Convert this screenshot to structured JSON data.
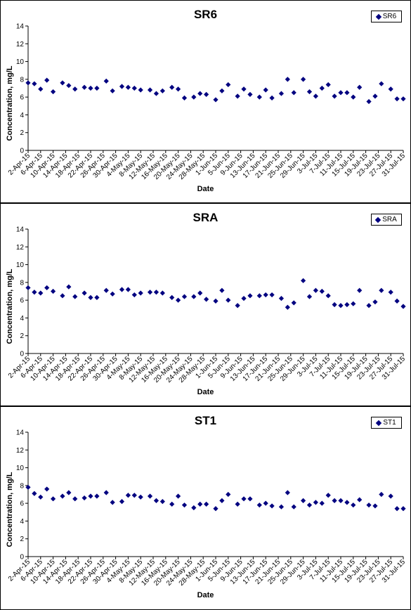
{
  "colors": {
    "marker": "#000080",
    "axis": "#000000",
    "background": "#ffffff"
  },
  "chart_data": [
    {
      "type": "scatter",
      "title": "SR6",
      "xlabel": "Date",
      "ylabel": "Concentration, mg/L",
      "ylim": [
        0,
        14
      ],
      "yticks": [
        0,
        2,
        4,
        6,
        8,
        10,
        12,
        14
      ],
      "xlim": [
        "2015-04-02",
        "2015-07-31"
      ],
      "xtick_labels": [
        "2-Apr-15",
        "6-Apr-15",
        "10-Apr-15",
        "14-Apr-15",
        "18-Apr-15",
        "22-Apr-15",
        "26-Apr-15",
        "30-Apr-15",
        "4-May-15",
        "8-May-15",
        "12-May-15",
        "16-May-15",
        "20-May-15",
        "24-May-15",
        "28-May-15",
        "1-Jun-15",
        "5-Jun-15",
        "9-Jun-15",
        "13-Jun-15",
        "17-Jun-15",
        "21-Jun-15",
        "25-Jun-15",
        "29-Jun-15",
        "3-Jul-15",
        "7-Jul-15",
        "11-Jul-15",
        "15-Jul-15",
        "19-Jul-15",
        "23-Jul-15",
        "27-Jul-15",
        "31-Jul-15"
      ],
      "grid": false,
      "legend": "top-right",
      "series": [
        {
          "name": "SR6",
          "x": [
            "2015-04-02",
            "2015-04-04",
            "2015-04-06",
            "2015-04-08",
            "2015-04-10",
            "2015-04-13",
            "2015-04-15",
            "2015-04-17",
            "2015-04-20",
            "2015-04-22",
            "2015-04-24",
            "2015-04-27",
            "2015-04-29",
            "2015-05-02",
            "2015-05-04",
            "2015-05-06",
            "2015-05-08",
            "2015-05-11",
            "2015-05-13",
            "2015-05-15",
            "2015-05-18",
            "2015-05-20",
            "2015-05-22",
            "2015-05-25",
            "2015-05-27",
            "2015-05-29",
            "2015-06-01",
            "2015-06-03",
            "2015-06-05",
            "2015-06-08",
            "2015-06-10",
            "2015-06-12",
            "2015-06-15",
            "2015-06-17",
            "2015-06-19",
            "2015-06-22",
            "2015-06-24",
            "2015-06-26",
            "2015-06-29",
            "2015-07-01",
            "2015-07-03",
            "2015-07-05",
            "2015-07-07",
            "2015-07-09",
            "2015-07-11",
            "2015-07-13",
            "2015-07-15",
            "2015-07-17",
            "2015-07-20",
            "2015-07-22",
            "2015-07-24",
            "2015-07-27",
            "2015-07-29",
            "2015-07-31"
          ],
          "y": [
            7.6,
            7.5,
            6.9,
            7.9,
            6.6,
            7.6,
            7.3,
            6.9,
            7.1,
            7.0,
            7.0,
            7.8,
            6.7,
            7.2,
            7.1,
            7.0,
            6.8,
            6.8,
            6.4,
            6.7,
            7.1,
            6.9,
            5.9,
            6.0,
            6.4,
            6.3,
            5.7,
            6.7,
            7.4,
            6.1,
            6.9,
            6.3,
            6.0,
            6.8,
            5.9,
            6.4,
            8.0,
            6.5,
            8.0,
            6.6,
            6.1,
            7.0,
            7.4,
            6.1,
            6.5,
            6.5,
            6.0,
            7.1,
            5.5,
            6.1,
            7.5,
            6.9,
            5.8,
            5.8
          ]
        }
      ]
    },
    {
      "type": "scatter",
      "title": "SRA",
      "xlabel": "Date",
      "ylabel": "Concentration, mg/L",
      "ylim": [
        0,
        14
      ],
      "yticks": [
        0,
        2,
        4,
        6,
        8,
        10,
        12,
        14
      ],
      "xlim": [
        "2015-04-02",
        "2015-07-31"
      ],
      "xtick_labels": [
        "2-Apr-15",
        "6-Apr-15",
        "10-Apr-15",
        "14-Apr-15",
        "18-Apr-15",
        "22-Apr-15",
        "26-Apr-15",
        "30-Apr-15",
        "4-May-15",
        "8-May-15",
        "12-May-15",
        "16-May-15",
        "20-May-15",
        "24-May-15",
        "28-May-15",
        "1-Jun-15",
        "5-Jun-15",
        "9-Jun-15",
        "13-Jun-15",
        "17-Jun-15",
        "21-Jun-15",
        "25-Jun-15",
        "29-Jun-15",
        "3-Jul-15",
        "7-Jul-15",
        "11-Jul-15",
        "15-Jul-15",
        "19-Jul-15",
        "23-Jul-15",
        "27-Jul-15",
        "31-Jul-15"
      ],
      "grid": false,
      "legend": "top-right",
      "series": [
        {
          "name": "SRA",
          "x": [
            "2015-04-02",
            "2015-04-04",
            "2015-04-06",
            "2015-04-08",
            "2015-04-10",
            "2015-04-13",
            "2015-04-15",
            "2015-04-17",
            "2015-04-20",
            "2015-04-22",
            "2015-04-24",
            "2015-04-27",
            "2015-04-29",
            "2015-05-02",
            "2015-05-04",
            "2015-05-06",
            "2015-05-08",
            "2015-05-11",
            "2015-05-13",
            "2015-05-15",
            "2015-05-18",
            "2015-05-20",
            "2015-05-22",
            "2015-05-25",
            "2015-05-27",
            "2015-05-29",
            "2015-06-01",
            "2015-06-03",
            "2015-06-05",
            "2015-06-08",
            "2015-06-10",
            "2015-06-12",
            "2015-06-15",
            "2015-06-17",
            "2015-06-19",
            "2015-06-22",
            "2015-06-24",
            "2015-06-26",
            "2015-06-29",
            "2015-07-01",
            "2015-07-03",
            "2015-07-05",
            "2015-07-07",
            "2015-07-09",
            "2015-07-11",
            "2015-07-13",
            "2015-07-15",
            "2015-07-17",
            "2015-07-20",
            "2015-07-22",
            "2015-07-24",
            "2015-07-27",
            "2015-07-29",
            "2015-07-31"
          ],
          "y": [
            7.4,
            6.9,
            6.8,
            7.4,
            7.0,
            6.5,
            7.5,
            6.4,
            6.8,
            6.3,
            6.3,
            7.1,
            6.7,
            7.2,
            7.2,
            6.6,
            6.8,
            6.9,
            6.9,
            6.8,
            6.3,
            6.0,
            6.4,
            6.4,
            6.8,
            6.1,
            5.9,
            7.1,
            6.0,
            5.4,
            6.2,
            6.5,
            6.5,
            6.6,
            6.6,
            6.2,
            5.2,
            5.7,
            8.2,
            6.4,
            7.1,
            7.0,
            6.5,
            5.5,
            5.4,
            5.5,
            5.6,
            7.1,
            5.4,
            5.8,
            7.1,
            6.9,
            5.9,
            5.3
          ]
        }
      ]
    },
    {
      "type": "scatter",
      "title": "ST1",
      "xlabel": "Date",
      "ylabel": "Concentration, mg/L",
      "ylim": [
        0,
        14
      ],
      "yticks": [
        0,
        2,
        4,
        6,
        8,
        10,
        12,
        14
      ],
      "xlim": [
        "2015-04-02",
        "2015-07-31"
      ],
      "xtick_labels": [
        "2-Apr-15",
        "6-Apr-15",
        "10-Apr-15",
        "14-Apr-15",
        "18-Apr-15",
        "22-Apr-15",
        "26-Apr-15",
        "30-Apr-15",
        "4-May-15",
        "8-May-15",
        "12-May-15",
        "16-May-15",
        "20-May-15",
        "24-May-15",
        "28-May-15",
        "1-Jun-15",
        "5-Jun-15",
        "9-Jun-15",
        "13-Jun-15",
        "17-Jun-15",
        "21-Jun-15",
        "25-Jun-15",
        "29-Jun-15",
        "3-Jul-15",
        "7-Jul-15",
        "11-Jul-15",
        "15-Jul-15",
        "19-Jul-15",
        "23-Jul-15",
        "27-Jul-15",
        "31-Jul-15"
      ],
      "grid": false,
      "legend": "top-right",
      "series": [
        {
          "name": "ST1",
          "x": [
            "2015-04-02",
            "2015-04-04",
            "2015-04-06",
            "2015-04-08",
            "2015-04-10",
            "2015-04-13",
            "2015-04-15",
            "2015-04-17",
            "2015-04-20",
            "2015-04-22",
            "2015-04-24",
            "2015-04-27",
            "2015-04-29",
            "2015-05-02",
            "2015-05-04",
            "2015-05-06",
            "2015-05-08",
            "2015-05-11",
            "2015-05-13",
            "2015-05-15",
            "2015-05-18",
            "2015-05-20",
            "2015-05-22",
            "2015-05-25",
            "2015-05-27",
            "2015-05-29",
            "2015-06-01",
            "2015-06-03",
            "2015-06-05",
            "2015-06-08",
            "2015-06-10",
            "2015-06-12",
            "2015-06-15",
            "2015-06-17",
            "2015-06-19",
            "2015-06-22",
            "2015-06-24",
            "2015-06-26",
            "2015-06-29",
            "2015-07-01",
            "2015-07-03",
            "2015-07-05",
            "2015-07-07",
            "2015-07-09",
            "2015-07-11",
            "2015-07-13",
            "2015-07-15",
            "2015-07-17",
            "2015-07-20",
            "2015-07-22",
            "2015-07-24",
            "2015-07-27",
            "2015-07-29",
            "2015-07-31"
          ],
          "y": [
            7.8,
            7.1,
            6.7,
            7.6,
            6.5,
            6.8,
            7.2,
            6.5,
            6.6,
            6.8,
            6.8,
            7.2,
            6.1,
            6.2,
            6.9,
            6.9,
            6.7,
            6.8,
            6.3,
            6.2,
            5.9,
            6.8,
            5.8,
            5.5,
            5.9,
            5.9,
            5.4,
            6.3,
            7.0,
            5.9,
            6.5,
            6.5,
            5.8,
            6.0,
            5.7,
            5.6,
            7.2,
            5.6,
            6.3,
            5.8,
            6.1,
            6.0,
            6.9,
            6.3,
            6.3,
            6.1,
            5.8,
            6.4,
            5.8,
            5.7,
            7.0,
            6.8,
            5.4,
            5.4
          ]
        }
      ]
    }
  ]
}
